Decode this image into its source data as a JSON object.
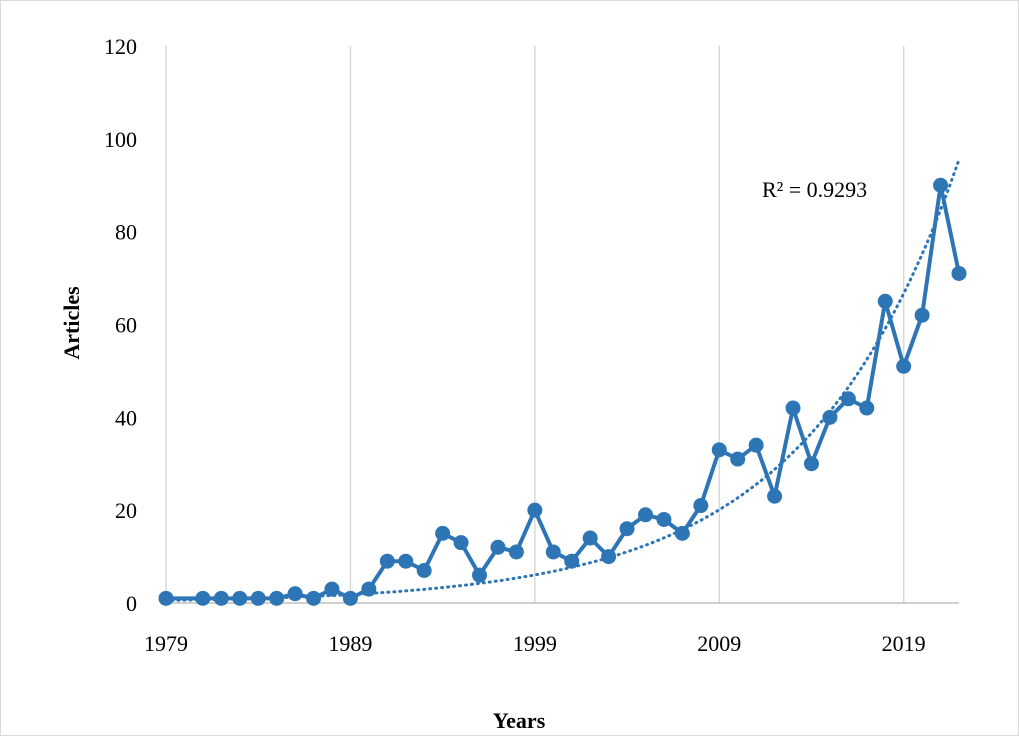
{
  "chart_data": {
    "type": "line",
    "xlabel": "Years",
    "ylabel": "Articles",
    "xlim": [
      1979,
      2022
    ],
    "ylim": [
      0,
      120
    ],
    "x_ticks": [
      1979,
      1989,
      1999,
      2009,
      2019
    ],
    "y_ticks": [
      0,
      20,
      40,
      60,
      80,
      100,
      120
    ],
    "grid": "vertical",
    "legend": "none",
    "series": [
      {
        "color": "#2e75b6",
        "x": [
          1979,
          1981,
          1982,
          1983,
          1984,
          1985,
          1986,
          1987,
          1988,
          1989,
          1990,
          1991,
          1992,
          1993,
          1994,
          1995,
          1996,
          1997,
          1998,
          1999,
          2000,
          2001,
          2002,
          2003,
          2004,
          2005,
          2006,
          2007,
          2008,
          2009,
          2010,
          2011,
          2012,
          2013,
          2014,
          2015,
          2016,
          2017,
          2018,
          2019,
          2020,
          2021,
          2022
        ],
        "y": [
          1,
          1,
          1,
          1,
          1,
          1,
          2,
          1,
          3,
          1,
          3,
          9,
          9,
          7,
          15,
          13,
          6,
          12,
          11,
          20,
          11,
          9,
          14,
          10,
          16,
          19,
          18,
          15,
          21,
          33,
          31,
          34,
          23,
          42,
          30,
          40,
          44,
          42,
          65,
          51,
          62,
          90,
          71
        ]
      }
    ],
    "trendline": {
      "type": "exponential",
      "style": "dotted",
      "color": "#2e75b6",
      "r2_label": "R² = 0.9293",
      "x_range": [
        1979,
        2022
      ],
      "y": [
        0.55,
        0.95,
        1.6,
        2.6,
        4.4,
        7.4,
        12.4,
        20.8,
        34.9,
        58.6,
        95.5
      ],
      "x": [
        1979,
        1983.3,
        1987.6,
        1991.9,
        1996.2,
        2000.5,
        2004.8,
        2009.1,
        2013.4,
        2017.7,
        2022
      ]
    }
  }
}
